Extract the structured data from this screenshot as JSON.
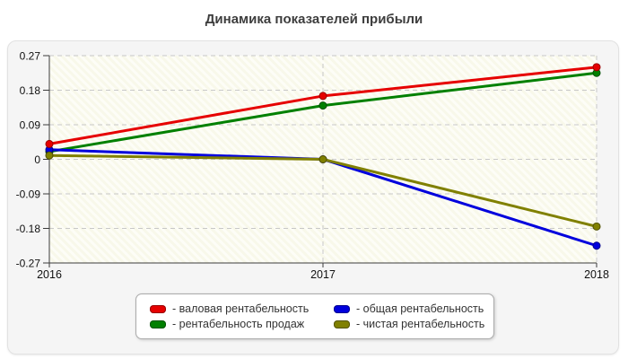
{
  "title": "Динамика показателей прибыли",
  "chart_data": {
    "type": "line",
    "x_labels": [
      "2016",
      "2017",
      "2018"
    ],
    "y_tick_labels": [
      "0.27",
      "0.18",
      "0.09",
      "0",
      "-0.09",
      "-0.18",
      "-0.27"
    ],
    "y_ticks": [
      0.27,
      0.18,
      0.09,
      0,
      -0.09,
      -0.18,
      -0.27
    ],
    "ylim": [
      -0.27,
      0.27
    ],
    "grid": true,
    "legend_position": "bottom",
    "plot_bg": "#f8f8ea",
    "plot_hatch": "#fdfdf7",
    "grid_color": "#c8c8c8",
    "axis_color": "#3a3a3a",
    "series": [
      {
        "name": "валовая рентабельность",
        "color": "#e60000",
        "edge": "#990000",
        "values": [
          0.04,
          0.165,
          0.24
        ]
      },
      {
        "name": "общая рентабельность",
        "color": "#0000dd",
        "edge": "#000088",
        "values": [
          0.025,
          0.0,
          -0.225
        ]
      },
      {
        "name": "рентабельность продаж",
        "color": "#008000",
        "edge": "#004d00",
        "values": [
          0.02,
          0.14,
          0.225
        ]
      },
      {
        "name": "чистая рентабельность",
        "color": "#808000",
        "edge": "#4f4f00",
        "values": [
          0.01,
          0.0,
          -0.175
        ]
      }
    ]
  },
  "legend": {
    "items": [
      {
        "label": "- валовая рентабельность",
        "color": "#e60000"
      },
      {
        "label": "- общая рентабельность",
        "color": "#0000dd"
      },
      {
        "label": "- рентабельность продаж",
        "color": "#008000"
      },
      {
        "label": "- чистая рентабельность",
        "color": "#808000"
      }
    ]
  }
}
